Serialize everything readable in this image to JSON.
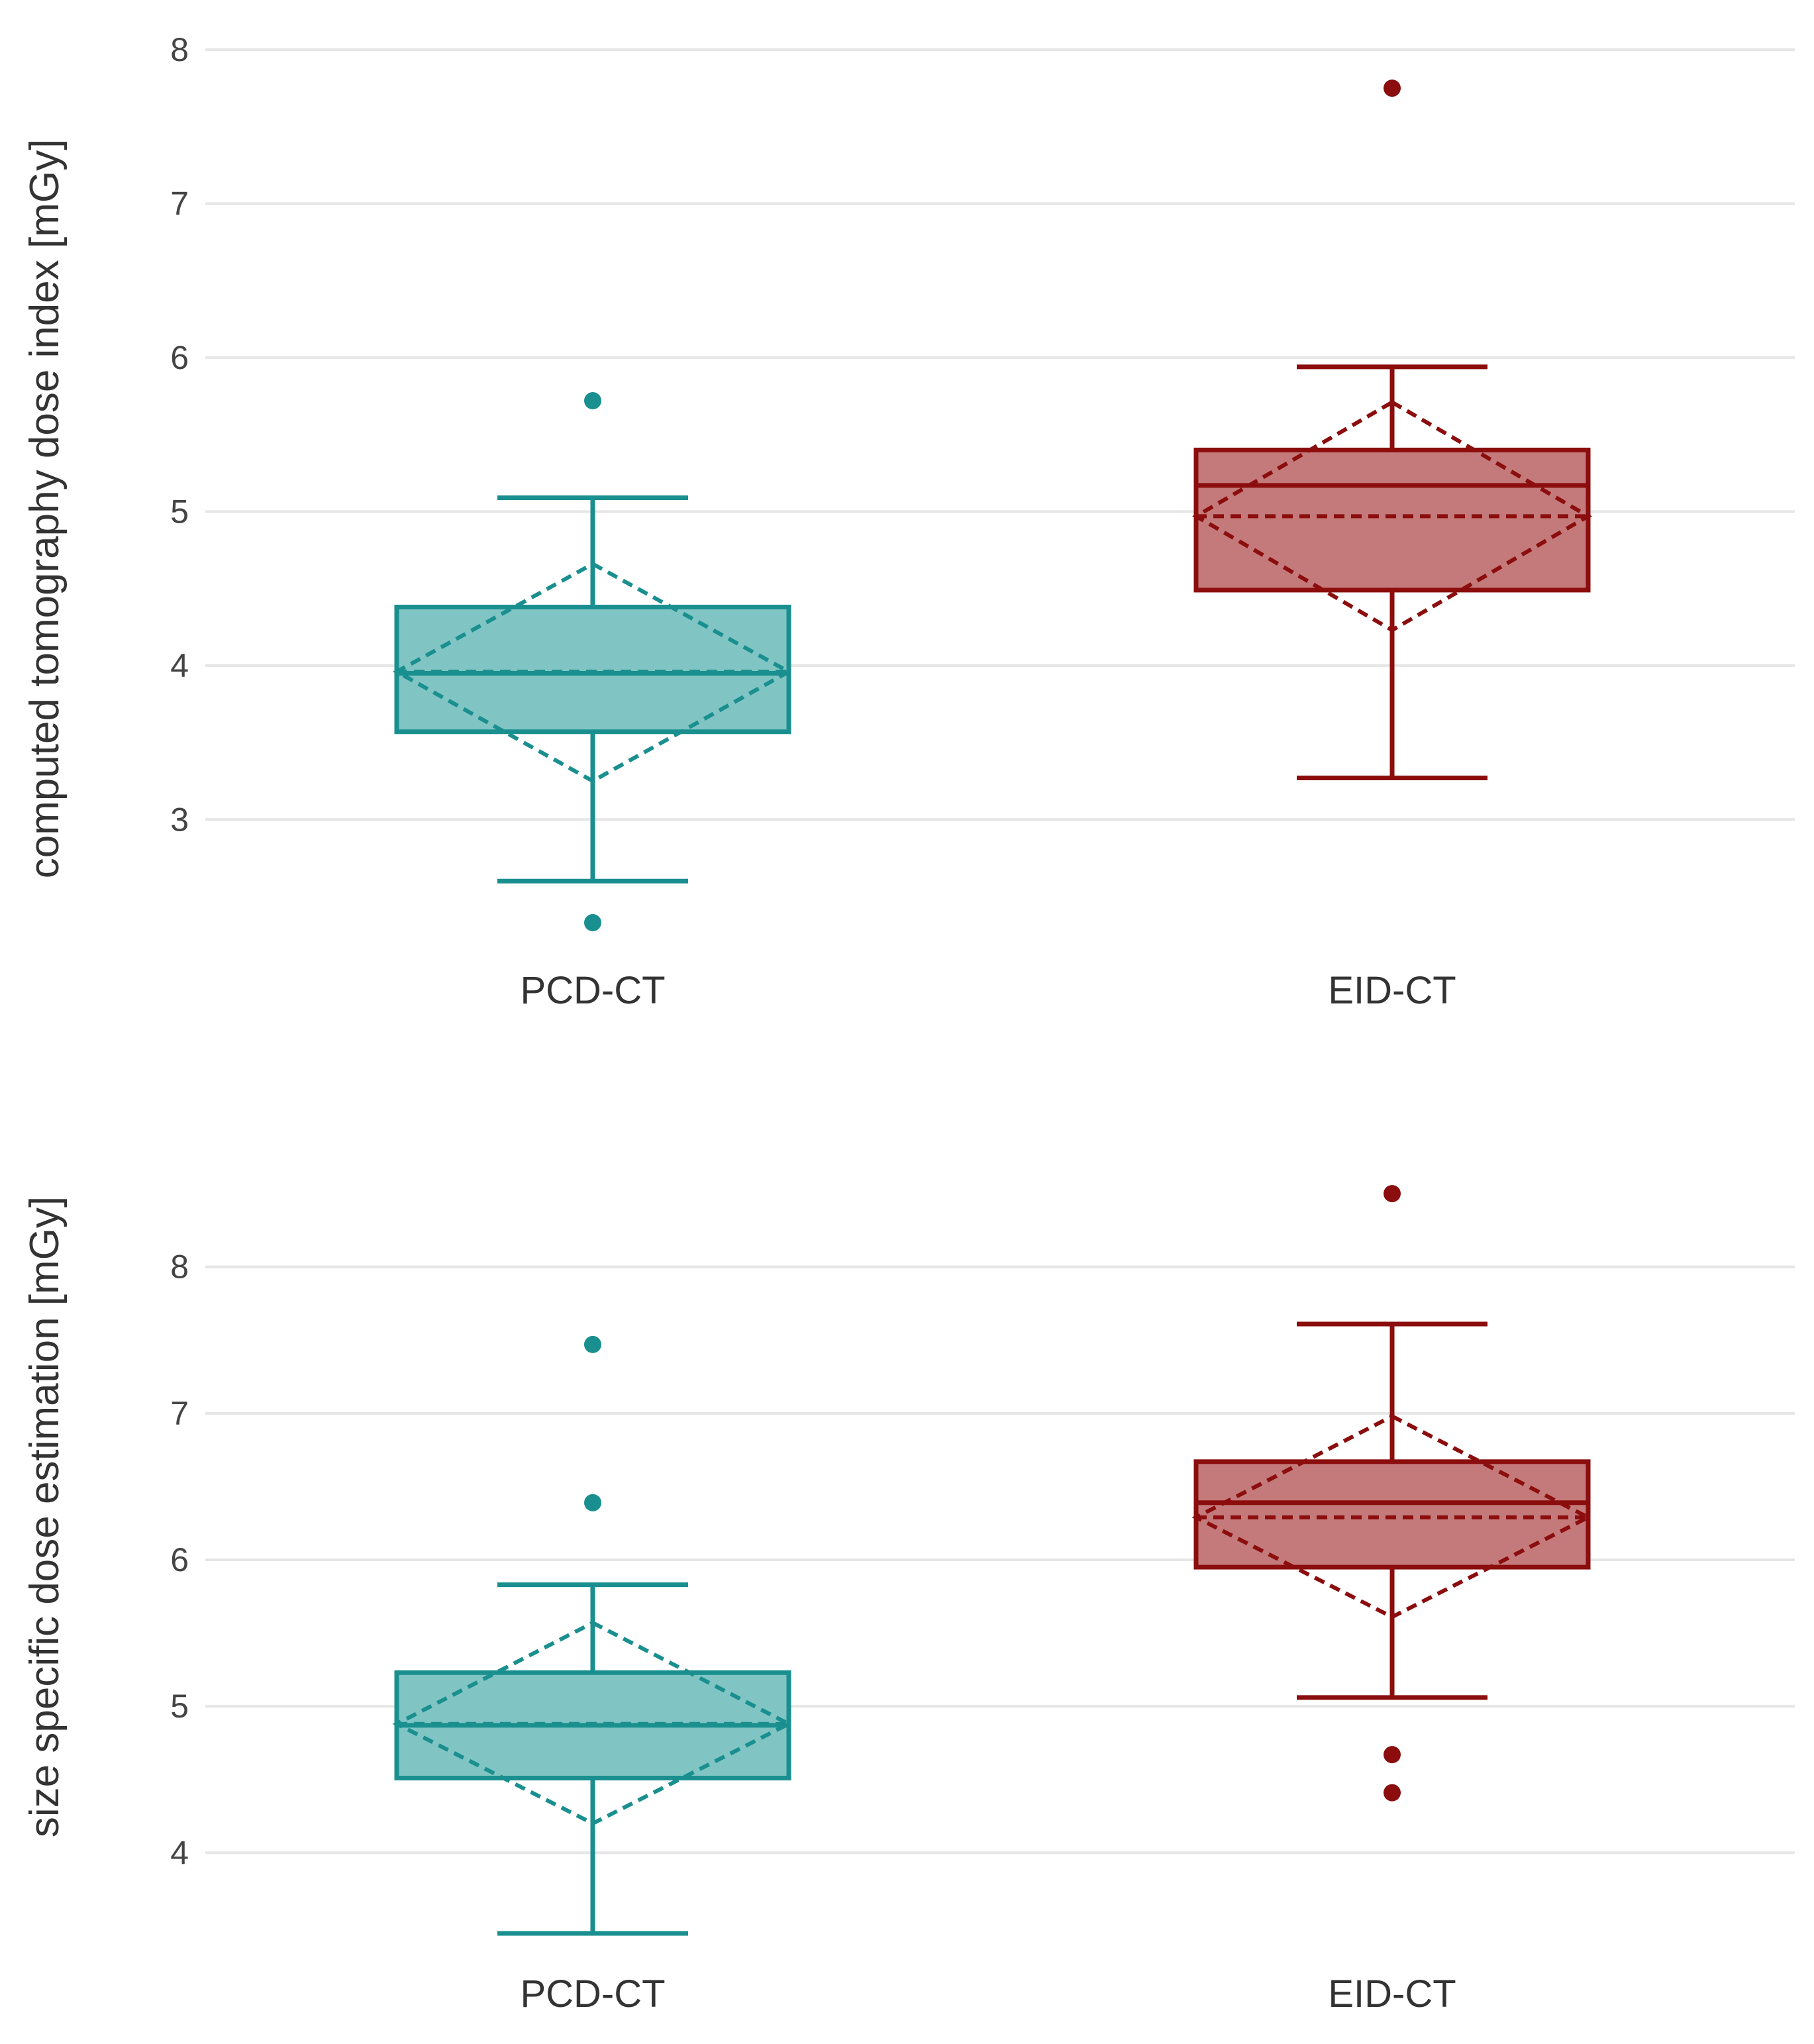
{
  "chart_data": [
    {
      "type": "box",
      "title": "",
      "xlabel": "",
      "ylabel": "computed tomography dose index [mGy]",
      "ylim": [
        2.3,
        8.0
      ],
      "yticks": [
        3,
        4,
        5,
        6,
        7,
        8
      ],
      "grid": true,
      "legend": "none",
      "categories": [
        "PCD-CT",
        "EID-CT"
      ],
      "series": [
        {
          "category": "PCD-CT",
          "color": "#1a8f8f",
          "fill": "#80c5c3",
          "whisker_low": 2.6,
          "q1": 3.57,
          "median": 3.95,
          "q3": 4.38,
          "whisker_high": 5.09,
          "mean": 3.96,
          "mean_ci": [
            3.25,
            4.66
          ],
          "outliers": [
            5.72,
            2.33
          ]
        },
        {
          "category": "EID-CT",
          "color": "#8b0d0d",
          "fill": "#c47a7a",
          "whisker_low": 3.27,
          "q1": 4.49,
          "median": 5.17,
          "q3": 5.4,
          "whisker_high": 5.94,
          "mean": 4.97,
          "mean_ci": [
            4.23,
            5.71
          ],
          "outliers": [
            7.75
          ]
        }
      ]
    },
    {
      "type": "box",
      "title": "",
      "xlabel": "",
      "ylabel": "size specific dose estimation [mGy]",
      "ylim": [
        3.4,
        8.6
      ],
      "yticks": [
        4,
        5,
        6,
        7,
        8
      ],
      "grid": true,
      "legend": "none",
      "categories": [
        "PCD-CT",
        "EID-CT"
      ],
      "series": [
        {
          "category": "PCD-CT",
          "color": "#1a8f8f",
          "fill": "#80c5c3",
          "whisker_low": 3.45,
          "q1": 4.51,
          "median": 4.87,
          "q3": 5.23,
          "whisker_high": 5.83,
          "mean": 4.88,
          "mean_ci": [
            4.2,
            5.57
          ],
          "outliers": [
            7.47,
            6.39
          ]
        },
        {
          "category": "EID-CT",
          "color": "#8b0d0d",
          "fill": "#c47a7a",
          "whisker_low": 5.06,
          "q1": 5.95,
          "median": 6.39,
          "q3": 6.67,
          "whisker_high": 7.61,
          "mean": 6.29,
          "mean_ci": [
            5.61,
            6.98
          ],
          "outliers": [
            8.5,
            4.67,
            4.41
          ]
        }
      ]
    }
  ]
}
